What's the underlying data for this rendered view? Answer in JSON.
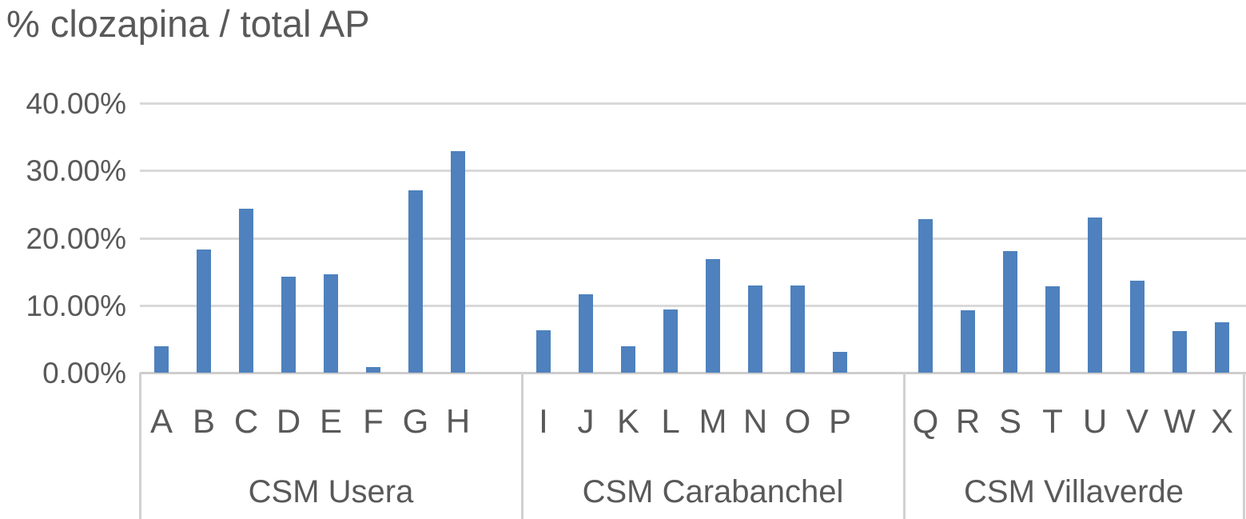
{
  "chart_data": {
    "type": "bar",
    "title": "% clozapina / total AP",
    "xlabel": "",
    "ylabel": "",
    "ylim": [
      0,
      40
    ],
    "grid": true,
    "legend": false,
    "bar_color": "#4e81bd",
    "text_color": "#595959",
    "gridline_color": "#d9d9d9",
    "y_ticks": [
      {
        "label": "0.00%",
        "value": 0
      },
      {
        "label": "10.00%",
        "value": 10
      },
      {
        "label": "20.00%",
        "value": 20
      },
      {
        "label": "30.00%",
        "value": 30
      },
      {
        "label": "40.00%",
        "value": 40
      }
    ],
    "groups": [
      {
        "label": "CSM Usera",
        "categories": [
          "A",
          "B",
          "C",
          "D",
          "E",
          "F",
          "G",
          "H"
        ],
        "values": [
          3.9,
          18.3,
          24.3,
          14.2,
          14.6,
          0.8,
          27.1,
          32.9
        ]
      },
      {
        "label": "CSM Carabanchel",
        "categories": [
          "I",
          "J",
          "K",
          "L",
          "M",
          "N",
          "O",
          "P"
        ],
        "values": [
          6.3,
          11.6,
          3.9,
          9.4,
          16.9,
          12.9,
          12.9,
          3.1
        ]
      },
      {
        "label": "CSM Villaverde",
        "categories": [
          "Q",
          "R",
          "S",
          "T",
          "U",
          "V",
          "W",
          "X"
        ],
        "values": [
          22.8,
          9.3,
          18.1,
          12.8,
          23.0,
          13.7,
          6.2,
          7.5
        ]
      }
    ]
  }
}
